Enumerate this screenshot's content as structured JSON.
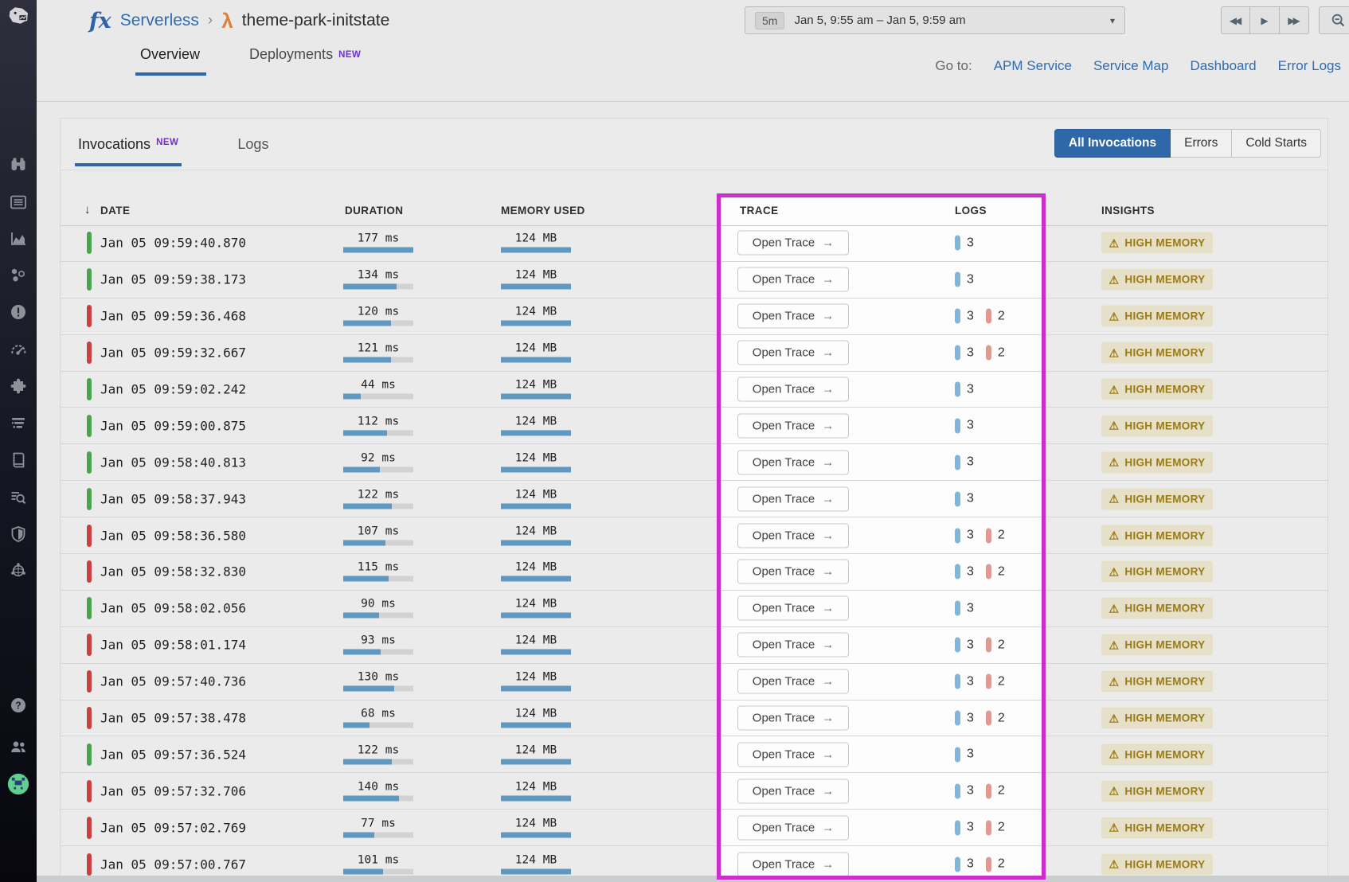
{
  "header": {
    "logo_text": "fx",
    "breadcrumb": {
      "section": "Serverless",
      "separator": "›",
      "entity": "theme-park-initstate"
    },
    "time_picker": {
      "duration": "5m",
      "range": "Jan 5, 9:55 am – Jan 5, 9:59 am"
    },
    "tabs": [
      {
        "label": "Overview",
        "active": true
      },
      {
        "label": "Deployments",
        "badge": "NEW",
        "active": false
      }
    ],
    "goto": {
      "label": "Go to:",
      "links": [
        "APM Service",
        "Service Map",
        "Dashboard",
        "Error Logs"
      ]
    }
  },
  "card": {
    "tabs": [
      {
        "label": "Invocations",
        "badge": "NEW",
        "active": true
      },
      {
        "label": "Logs",
        "active": false
      }
    ],
    "filters": [
      "All Invocations",
      "Errors",
      "Cold Starts"
    ]
  },
  "table": {
    "sort_icon": "↓",
    "columns": {
      "date": "DATE",
      "duration": "DURATION",
      "memory": "MEMORY USED",
      "trace": "TRACE",
      "logs": "LOGS",
      "insights": "INSIGHTS"
    },
    "open_trace_label": "Open Trace",
    "arrow_icon": "→",
    "warning_icon": "⚠",
    "duration_max_ms": 177,
    "rows": [
      {
        "status": "success",
        "date": "Jan 05 09:59:40.870",
        "duration_ms": 177,
        "duration": "177 ms",
        "memory": "124 MB",
        "info_logs": 3,
        "error_logs": 0,
        "insight": "HIGH MEMORY"
      },
      {
        "status": "success",
        "date": "Jan 05 09:59:38.173",
        "duration_ms": 134,
        "duration": "134 ms",
        "memory": "124 MB",
        "info_logs": 3,
        "error_logs": 0,
        "insight": "HIGH MEMORY"
      },
      {
        "status": "error",
        "date": "Jan 05 09:59:36.468",
        "duration_ms": 120,
        "duration": "120 ms",
        "memory": "124 MB",
        "info_logs": 3,
        "error_logs": 2,
        "insight": "HIGH MEMORY"
      },
      {
        "status": "error",
        "date": "Jan 05 09:59:32.667",
        "duration_ms": 121,
        "duration": "121 ms",
        "memory": "124 MB",
        "info_logs": 3,
        "error_logs": 2,
        "insight": "HIGH MEMORY"
      },
      {
        "status": "success",
        "date": "Jan 05 09:59:02.242",
        "duration_ms": 44,
        "duration": "44 ms",
        "memory": "124 MB",
        "info_logs": 3,
        "error_logs": 0,
        "insight": "HIGH MEMORY"
      },
      {
        "status": "success",
        "date": "Jan 05 09:59:00.875",
        "duration_ms": 112,
        "duration": "112 ms",
        "memory": "124 MB",
        "info_logs": 3,
        "error_logs": 0,
        "insight": "HIGH MEMORY"
      },
      {
        "status": "success",
        "date": "Jan 05 09:58:40.813",
        "duration_ms": 92,
        "duration": "92 ms",
        "memory": "124 MB",
        "info_logs": 3,
        "error_logs": 0,
        "insight": "HIGH MEMORY"
      },
      {
        "status": "success",
        "date": "Jan 05 09:58:37.943",
        "duration_ms": 122,
        "duration": "122 ms",
        "memory": "124 MB",
        "info_logs": 3,
        "error_logs": 0,
        "insight": "HIGH MEMORY"
      },
      {
        "status": "error",
        "date": "Jan 05 09:58:36.580",
        "duration_ms": 107,
        "duration": "107 ms",
        "memory": "124 MB",
        "info_logs": 3,
        "error_logs": 2,
        "insight": "HIGH MEMORY"
      },
      {
        "status": "error",
        "date": "Jan 05 09:58:32.830",
        "duration_ms": 115,
        "duration": "115 ms",
        "memory": "124 MB",
        "info_logs": 3,
        "error_logs": 2,
        "insight": "HIGH MEMORY"
      },
      {
        "status": "success",
        "date": "Jan 05 09:58:02.056",
        "duration_ms": 90,
        "duration": "90 ms",
        "memory": "124 MB",
        "info_logs": 3,
        "error_logs": 0,
        "insight": "HIGH MEMORY"
      },
      {
        "status": "error",
        "date": "Jan 05 09:58:01.174",
        "duration_ms": 93,
        "duration": "93 ms",
        "memory": "124 MB",
        "info_logs": 3,
        "error_logs": 2,
        "insight": "HIGH MEMORY"
      },
      {
        "status": "error",
        "date": "Jan 05 09:57:40.736",
        "duration_ms": 130,
        "duration": "130 ms",
        "memory": "124 MB",
        "info_logs": 3,
        "error_logs": 2,
        "insight": "HIGH MEMORY"
      },
      {
        "status": "error",
        "date": "Jan 05 09:57:38.478",
        "duration_ms": 68,
        "duration": "68 ms",
        "memory": "124 MB",
        "info_logs": 3,
        "error_logs": 2,
        "insight": "HIGH MEMORY"
      },
      {
        "status": "success",
        "date": "Jan 05 09:57:36.524",
        "duration_ms": 122,
        "duration": "122 ms",
        "memory": "124 MB",
        "info_logs": 3,
        "error_logs": 0,
        "insight": "HIGH MEMORY"
      },
      {
        "status": "error",
        "date": "Jan 05 09:57:32.706",
        "duration_ms": 140,
        "duration": "140 ms",
        "memory": "124 MB",
        "info_logs": 3,
        "error_logs": 2,
        "insight": "HIGH MEMORY"
      },
      {
        "status": "error",
        "date": "Jan 05 09:57:02.769",
        "duration_ms": 77,
        "duration": "77 ms",
        "memory": "124 MB",
        "info_logs": 3,
        "error_logs": 2,
        "insight": "HIGH MEMORY"
      },
      {
        "status": "error",
        "date": "Jan 05 09:57:00.767",
        "duration_ms": 101,
        "duration": "101 ms",
        "memory": "124 MB",
        "info_logs": 3,
        "error_logs": 2,
        "insight": "HIGH MEMORY"
      }
    ]
  },
  "icons": {
    "caret_down": "▾",
    "rewind": "◀◀",
    "play": "▶",
    "forward": "▶▶",
    "lambda": "λ"
  },
  "colors": {
    "accent_blue": "#2f6cb3",
    "highlight_magenta": "#cb2fc9",
    "success_green": "#4aa44e",
    "error_red": "#c8403f",
    "bar_blue": "#5f98c0",
    "log_blue": "#7fb6dc",
    "log_red": "#dd9b93",
    "insight_gold": "#997a14",
    "insight_bg": "#e7e0c9",
    "new_purple": "#6f2ed4"
  }
}
